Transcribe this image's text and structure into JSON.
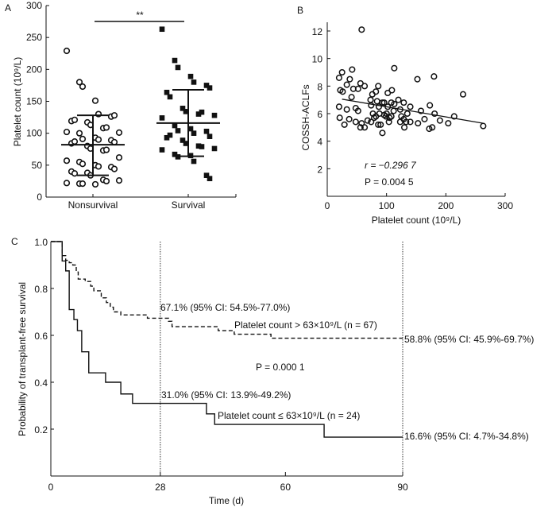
{
  "chart_data": [
    {
      "panel": "A",
      "type": "scatter",
      "ylabel": "Platelet count (10⁹/L)",
      "ylim": [
        0,
        300
      ],
      "yticks": [
        "0",
        "50",
        "100",
        "150",
        "200",
        "250",
        "300"
      ],
      "categories": [
        "Nonsurvival",
        "Survival"
      ],
      "significance": "**",
      "series": [
        {
          "name": "Nonsurvival",
          "marker": "open-circle",
          "mean": 82,
          "sd_low": 34,
          "sd_high": 128,
          "values": [
            229,
            180,
            173,
            151,
            130,
            126,
            128,
            119,
            121,
            117,
            113,
            108,
            109,
            101,
            102,
            100,
            91,
            93,
            90,
            89,
            86,
            84,
            87,
            80,
            76,
            73,
            74,
            62,
            57,
            55,
            52,
            50,
            48,
            47,
            44,
            40,
            37,
            38,
            34,
            27,
            25,
            26,
            22,
            21,
            21,
            20
          ]
        },
        {
          "name": "Survival",
          "marker": "filled-square",
          "mean": 116,
          "sd_low": 64,
          "sd_high": 168,
          "values": [
            263,
            214,
            203,
            189,
            180,
            175,
            171,
            164,
            157,
            139,
            134,
            130,
            133,
            128,
            124,
            112,
            104,
            107,
            100,
            103,
            95,
            93,
            97,
            89,
            84,
            80,
            79,
            76,
            74,
            67,
            63,
            65,
            56,
            34,
            29
          ]
        }
      ]
    },
    {
      "panel": "B",
      "type": "scatter",
      "xlabel": "Platelet count (10⁹/L)",
      "ylabel": "COSSH-ACLFs",
      "xlim": [
        0,
        300
      ],
      "ylim": [
        0,
        12.6
      ],
      "xticks": [
        "0",
        "100",
        "200",
        "300"
      ],
      "yticks": [
        "2",
        "4",
        "6",
        "8",
        "10",
        "12"
      ],
      "annotation_r": "r = −0.296 7",
      "annotation_p": "P = 0.004 5",
      "regression": {
        "x": [
          25,
          263
        ],
        "y": [
          7.05,
          5.3
        ]
      },
      "points": [
        [
          58,
          12.1
        ],
        [
          20,
          8.6
        ],
        [
          25,
          9.0
        ],
        [
          42,
          9.2
        ],
        [
          113,
          9.3
        ],
        [
          152,
          8.5
        ],
        [
          180,
          8.7
        ],
        [
          229,
          7.4
        ],
        [
          38,
          8.5
        ],
        [
          33,
          8.1
        ],
        [
          56,
          8.2
        ],
        [
          63,
          8.0
        ],
        [
          86,
          8.0
        ],
        [
          22,
          7.7
        ],
        [
          26,
          7.6
        ],
        [
          44,
          7.8
        ],
        [
          52,
          7.8
        ],
        [
          41,
          7.2
        ],
        [
          76,
          7.4
        ],
        [
          82,
          7.6
        ],
        [
          102,
          7.5
        ],
        [
          109,
          7.7
        ],
        [
          20,
          6.5
        ],
        [
          33,
          6.3
        ],
        [
          48,
          6.4
        ],
        [
          52,
          6.2
        ],
        [
          73,
          7.0
        ],
        [
          74,
          6.6
        ],
        [
          84,
          6.9
        ],
        [
          87,
          6.5
        ],
        [
          93,
          6.8
        ],
        [
          96,
          6.8
        ],
        [
          102,
          6.5
        ],
        [
          108,
          6.8
        ],
        [
          113,
          6.7
        ],
        [
          120,
          7.0
        ],
        [
          129,
          6.8
        ],
        [
          140,
          6.5
        ],
        [
          173,
          6.6
        ],
        [
          158,
          6.2
        ],
        [
          112,
          6.2
        ],
        [
          123,
          6.3
        ],
        [
          125,
          5.8
        ],
        [
          135,
          6.0
        ],
        [
          21,
          5.7
        ],
        [
          37,
          5.6
        ],
        [
          48,
          5.4
        ],
        [
          29,
          5.2
        ],
        [
          58,
          5.3
        ],
        [
          56,
          5.0
        ],
        [
          63,
          5.0
        ],
        [
          68,
          5.5
        ],
        [
          74,
          5.4
        ],
        [
          77,
          6.0
        ],
        [
          79,
          5.7
        ],
        [
          82,
          5.8
        ],
        [
          86,
          5.2
        ],
        [
          90,
          5.2
        ],
        [
          88,
          6.0
        ],
        [
          93,
          4.6
        ],
        [
          96,
          5.9
        ],
        [
          100,
          6.0
        ],
        [
          99,
          5.8
        ],
        [
          105,
          5.7
        ],
        [
          104,
          5.4
        ],
        [
          108,
          5.8
        ],
        [
          123,
          5.4
        ],
        [
          129,
          5.6
        ],
        [
          130,
          5.0
        ],
        [
          133,
          5.4
        ],
        [
          140,
          5.4
        ],
        [
          153,
          5.3
        ],
        [
          164,
          5.6
        ],
        [
          172,
          4.9
        ],
        [
          177,
          5.0
        ],
        [
          181,
          6.0
        ],
        [
          190,
          5.5
        ],
        [
          204,
          5.3
        ],
        [
          214,
          5.8
        ],
        [
          263,
          5.1
        ]
      ]
    },
    {
      "panel": "C",
      "type": "line",
      "xlabel": "Time (d)",
      "ylabel": "Probability of transplant-free survival",
      "xlim": [
        0,
        90
      ],
      "ylim": [
        0,
        1.0
      ],
      "xticks": [
        0,
        28,
        60,
        90
      ],
      "yticks": [
        "0.2",
        "0.4",
        "0.6",
        "0.8",
        "1.0"
      ],
      "reference_lines_x": [
        28,
        90
      ],
      "p_value": "P = 0.000 1",
      "series": [
        {
          "name": "Platelet count > 63×10⁹/L (n = 67)",
          "style": "dashed",
          "steps": [
            [
              0,
              1.0
            ],
            [
              2.9,
              0.94
            ],
            [
              3.8,
              0.92
            ],
            [
              4.7,
              0.91
            ],
            [
              5.6,
              0.9
            ],
            [
              6.5,
              0.87
            ],
            [
              7,
              0.84
            ],
            [
              8.8,
              0.83
            ],
            [
              10.2,
              0.81
            ],
            [
              11,
              0.79
            ],
            [
              12.9,
              0.76
            ],
            [
              14.2,
              0.74
            ],
            [
              15.2,
              0.72
            ],
            [
              16,
              0.7
            ],
            [
              17.9,
              0.687
            ],
            [
              24.7,
              0.673
            ],
            [
              30.1,
              0.66
            ],
            [
              31,
              0.637
            ],
            [
              42.8,
              0.62
            ],
            [
              46.9,
              0.605
            ],
            [
              56.3,
              0.588
            ],
            [
              90,
              0.588
            ]
          ],
          "label_28": "67.1% (95% CI: 54.5%-77.0%)",
          "label_90": "58.8% (95% CI: 45.9%-69.7%)"
        },
        {
          "name": "Platelet count ≤ 63×10⁹/L (n = 24)",
          "style": "solid",
          "steps": [
            [
              0,
              1.0
            ],
            [
              2.9,
              0.917
            ],
            [
              3.8,
              0.875
            ],
            [
              4.7,
              0.71
            ],
            [
              5.9,
              0.667
            ],
            [
              6.8,
              0.62
            ],
            [
              7.9,
              0.53
            ],
            [
              9.7,
              0.44
            ],
            [
              14,
              0.4
            ],
            [
              17.9,
              0.35
            ],
            [
              20.9,
              0.31
            ],
            [
              39.8,
              0.265
            ],
            [
              41.9,
              0.22
            ],
            [
              69.9,
              0.166
            ],
            [
              90,
              0.166
            ]
          ],
          "label_28": "31.0% (95% CI: 13.9%-49.2%)",
          "label_90": "16.6% (95% CI: 4.7%-34.8%)"
        }
      ]
    }
  ],
  "panel_labels": [
    "A",
    "B",
    "C"
  ]
}
